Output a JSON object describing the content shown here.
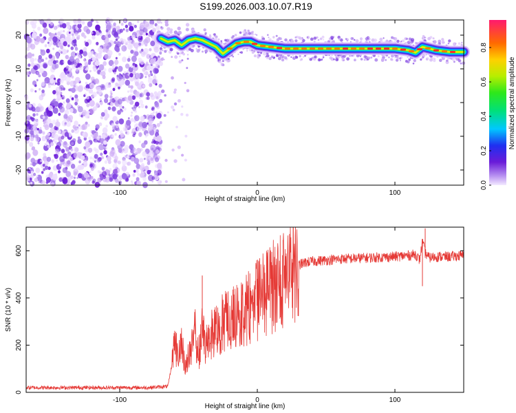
{
  "title": "S199.2026.003.10.07.R19",
  "chart_data": [
    {
      "type": "heatmap",
      "xlabel": "Height of straight line (km)",
      "ylabel": "Frequency (Hz)",
      "xlim": [
        -168,
        150
      ],
      "ylim": [
        -24.5,
        24.5
      ],
      "x_ticks": [
        "-100",
        "0",
        "100"
      ],
      "x_tick_values": [
        -100,
        0,
        100
      ],
      "y_ticks": [
        "20",
        "10",
        "0",
        "-10",
        "-20"
      ],
      "y_tick_values": [
        20,
        10,
        0,
        -10,
        -20
      ],
      "noise_region_x": [
        -168,
        -70
      ],
      "ridge": {
        "x": [
          -70,
          -65,
          -60,
          -55,
          -50,
          -45,
          -40,
          -35,
          -30,
          -25,
          -20,
          -15,
          -10,
          -5,
          0,
          10,
          20,
          30,
          50,
          70,
          90,
          100,
          110,
          115,
          120,
          130,
          140,
          150
        ],
        "y": [
          19,
          18,
          18.5,
          17,
          18.5,
          19,
          18.5,
          17.5,
          16.5,
          14.5,
          16,
          17.5,
          18,
          18,
          17,
          16.5,
          16,
          16,
          16,
          16,
          16,
          16,
          15.5,
          14.8,
          16.5,
          15.5,
          15,
          15
        ]
      },
      "colorbar": {
        "label": "Normalized spectral amplitude",
        "ticks": [
          "0.0",
          "0.2",
          "0.4",
          "0.6",
          "0.8"
        ],
        "tick_values": [
          0,
          0.2,
          0.4,
          0.6,
          0.8
        ],
        "range": [
          0,
          0.96
        ]
      }
    },
    {
      "type": "line",
      "xlabel": "Height of straight line (km)",
      "ylabel": "SNR (10 * v/v)",
      "xlim": [
        -168,
        150
      ],
      "ylim": [
        0,
        700
      ],
      "x_ticks": [
        "-100",
        "0",
        "100"
      ],
      "x_tick_values": [
        -100,
        0,
        100
      ],
      "y_ticks": [
        "0",
        "200",
        "400",
        "600"
      ],
      "y_tick_values": [
        0,
        200,
        400,
        600
      ],
      "color": "#e53935",
      "series": [
        {
          "x": [
            -168,
            -120,
            -80,
            -65,
            -62,
            -60,
            -58,
            -55,
            -52,
            -50,
            -48,
            -45,
            -42,
            -40,
            -38,
            -35,
            -30,
            -25,
            -20,
            -15,
            -10,
            -5,
            0,
            5,
            10,
            15,
            20,
            25,
            30,
            35,
            40,
            50,
            60,
            80,
            100,
            110,
            115,
            118,
            120,
            122,
            125,
            130,
            140,
            150
          ],
          "y": [
            20,
            20,
            20,
            25,
            120,
            220,
            150,
            200,
            100,
            160,
            180,
            250,
            160,
            280,
            200,
            240,
            270,
            300,
            300,
            320,
            340,
            370,
            390,
            410,
            440,
            470,
            500,
            520,
            540,
            550,
            555,
            560,
            565,
            570,
            575,
            580,
            585,
            560,
            640,
            590,
            570,
            575,
            575,
            580
          ]
        }
      ],
      "spikes": [
        {
          "x": -40,
          "y": 495
        },
        {
          "x": 122,
          "y": 695
        },
        {
          "x": 120,
          "y": 450
        }
      ]
    }
  ]
}
